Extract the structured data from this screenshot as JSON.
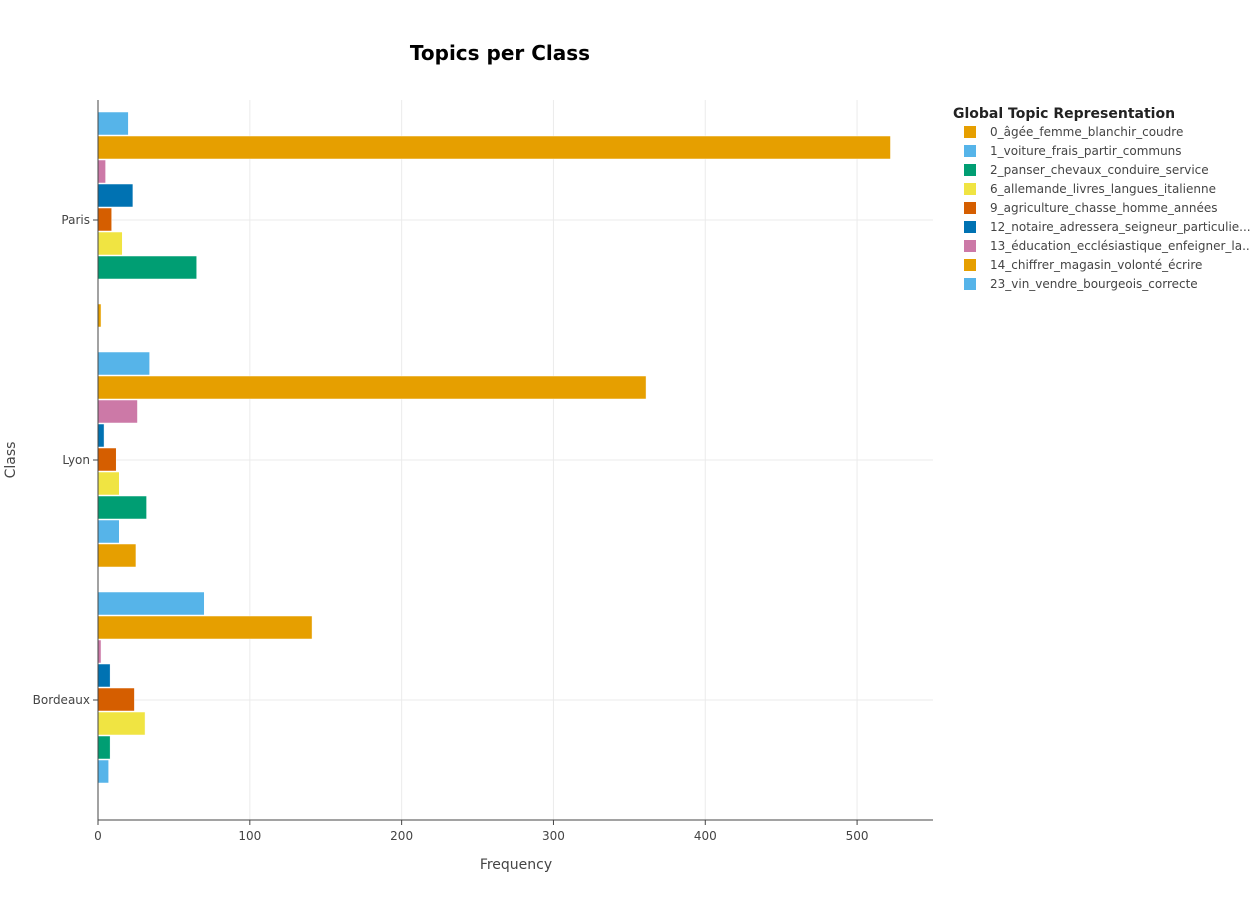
{
  "chart_data": {
    "type": "bar",
    "orientation": "horizontal",
    "title": "Topics per Class",
    "xlabel": "Frequency",
    "ylabel": "Class",
    "xlim": [
      0,
      550
    ],
    "x_ticks": [
      0,
      100,
      200,
      300,
      400,
      500
    ],
    "categories": [
      "Paris",
      "Lyon",
      "Bordeaux"
    ],
    "grid": true,
    "legend_title": "Global Topic Representation",
    "legend_position": "right",
    "series": [
      {
        "name": "0_âgée_femme_blanchir_coudre",
        "color": "#E69F00",
        "values": [
          2,
          25,
          0
        ]
      },
      {
        "name": "1_voiture_frais_partir_communs",
        "color": "#56B4E9",
        "values": [
          0,
          14,
          7
        ]
      },
      {
        "name": "2_panser_chevaux_conduire_service",
        "color": "#009E73",
        "values": [
          65,
          32,
          8
        ]
      },
      {
        "name": "6_allemande_livres_langues_italienne",
        "color": "#F0E442",
        "values": [
          16,
          14,
          31
        ]
      },
      {
        "name": "9_agriculture_chasse_homme_années",
        "color": "#D55E00",
        "values": [
          9,
          12,
          24
        ]
      },
      {
        "name": "12_notaire_adressera_seigneur_particulie...",
        "color": "#0072B2",
        "values": [
          23,
          4,
          8
        ]
      },
      {
        "name": "13_éducation_ecclésiastique_enfeigner_la...",
        "color": "#CC79A7",
        "values": [
          5,
          26,
          2
        ]
      },
      {
        "name": "14_chiffrer_magasin_volonté_écrire",
        "color": "#E69F00",
        "values": [
          522,
          361,
          141
        ]
      },
      {
        "name": "23_vin_vendre_bourgeois_correcte",
        "color": "#56B4E9",
        "values": [
          20,
          34,
          70
        ]
      }
    ]
  }
}
